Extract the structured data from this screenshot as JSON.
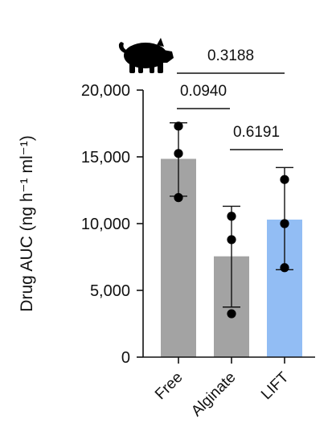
{
  "chart_data": {
    "type": "bar",
    "categories": [
      "Free",
      "Alginate",
      "LIFT"
    ],
    "values": [
      14850,
      7550,
      10300
    ],
    "errors": [
      {
        "low": 12050,
        "high": 17550
      },
      {
        "low": 3750,
        "high": 11300
      },
      {
        "low": 6550,
        "high": 14200
      }
    ],
    "points": [
      [
        17300,
        15250,
        11950
      ],
      [
        10550,
        8800,
        3250
      ],
      [
        13300,
        10000,
        6700
      ]
    ],
    "bar_colors": [
      "#a3a3a3",
      "#a3a3a3",
      "#92bdf4"
    ],
    "ylabel": "Drug AUC (ng h⁻¹ ml⁻¹)",
    "ylim": [
      0,
      20000
    ],
    "yticks": [
      0,
      5000,
      10000,
      15000,
      20000
    ],
    "ytick_labels": [
      "0",
      "5,000",
      "10,000",
      "15,000",
      "20,000"
    ],
    "grid": false,
    "significance": [
      {
        "from": 0,
        "to": 2,
        "label": "0.3188"
      },
      {
        "from": 0,
        "to": 1,
        "label": "0.0940"
      },
      {
        "from": 1,
        "to": 2,
        "label": "0.6191"
      }
    ],
    "icon": "pig-icon"
  }
}
